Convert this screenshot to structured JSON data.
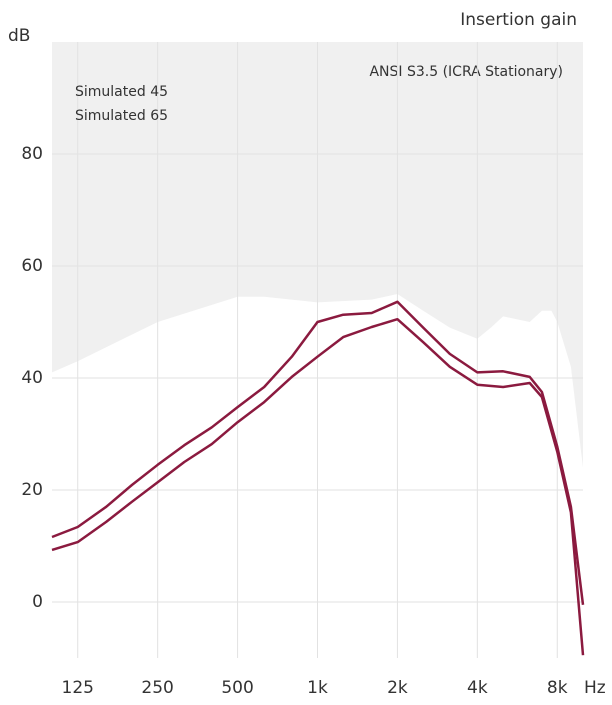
{
  "chart_data": {
    "type": "line",
    "title": "Insertion gain",
    "y_label": "dB",
    "x_label": "Hz",
    "annotation": "ANSI S3.5 (ICRA Stationary)",
    "log_x": true,
    "grid": true,
    "xlim": [
      100,
      10000
    ],
    "ylim": [
      -10,
      100
    ],
    "xticks": [
      125,
      250,
      500,
      {
        "value": 1000,
        "label": "1k"
      },
      {
        "value": 2000,
        "label": "2k"
      },
      {
        "value": 4000,
        "label": "4k"
      },
      {
        "value": 8000,
        "label": "8k"
      }
    ],
    "yticks": [
      0,
      20,
      40,
      60,
      80
    ],
    "x": [
      100,
      125,
      160,
      200,
      250,
      315,
      400,
      500,
      630,
      800,
      1000,
      1250,
      1600,
      2000,
      2500,
      3150,
      4000,
      5000,
      6300,
      7000,
      8000,
      9000,
      10000
    ],
    "series": [
      {
        "name": "Simulated 45",
        "color": "#8b1a3f",
        "values": [
          11.6,
          13.4,
          17,
          20.9,
          24.5,
          28,
          31.2,
          34.8,
          38.4,
          43.8,
          50,
          51.3,
          51.6,
          53.6,
          49,
          44.3,
          41,
          41.2,
          40.2,
          37.5,
          27.7,
          17,
          -0.5
        ]
      },
      {
        "name": "Simulated 65",
        "color": "#8b1a3f",
        "values": [
          9.3,
          10.7,
          14.3,
          17.9,
          21.4,
          25,
          28.2,
          32.1,
          35.7,
          40.2,
          43.8,
          47.3,
          49.1,
          50.5,
          46.4,
          42,
          38.8,
          38.4,
          39.1,
          36.6,
          26.8,
          16,
          -9.5
        ]
      }
    ],
    "limit": {
      "x": [
        100,
        125,
        250,
        500,
        630,
        1000,
        1600,
        2000,
        2500,
        3150,
        4000,
        4500,
        5000,
        6300,
        7000,
        7600,
        8000,
        9000,
        10000
      ],
      "values": [
        41,
        43,
        50,
        54.5,
        54.5,
        53.5,
        54,
        55,
        52,
        49,
        47,
        49,
        51,
        50,
        52,
        52,
        50,
        42,
        24
      ]
    }
  }
}
